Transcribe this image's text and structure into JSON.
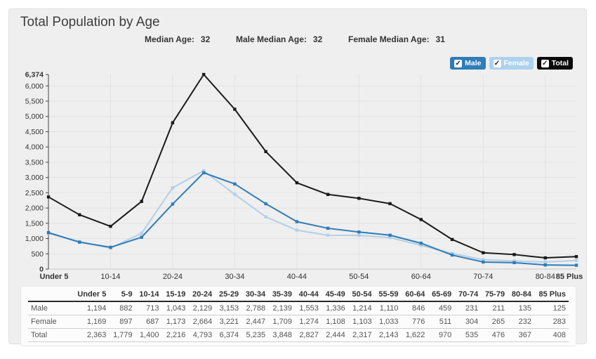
{
  "header": {
    "title": "Total Population by Age"
  },
  "stats": [
    {
      "label": "Median Age:",
      "value": "32"
    },
    {
      "label": "Male Median Age:",
      "value": "32"
    },
    {
      "label": "Female Median Age:",
      "value": "31"
    }
  ],
  "legend": [
    {
      "label": "Male",
      "color": "#2e7cb8",
      "text_color": "#ffffff",
      "checked": true
    },
    {
      "label": "Female",
      "color": "#aed1ee",
      "text_color": "#ffffff",
      "checked": true
    },
    {
      "label": "Total",
      "color": "#0a0a0a",
      "text_color": "#ffffff",
      "checked": true
    }
  ],
  "chart_data": {
    "type": "line",
    "title": "Total Population by Age",
    "categories": [
      "Under 5",
      "5-9",
      "10-14",
      "15-19",
      "20-24",
      "25-29",
      "30-34",
      "35-39",
      "40-44",
      "45-49",
      "50-54",
      "55-59",
      "60-64",
      "65-69",
      "70-74",
      "75-79",
      "80-84",
      "85 Plus"
    ],
    "series": [
      {
        "name": "Female",
        "color": "#b3cfe9",
        "values": [
          1169,
          897,
          687,
          1173,
          2664,
          3221,
          2447,
          1709,
          1274,
          1108,
          1103,
          1033,
          776,
          511,
          304,
          265,
          232,
          283
        ]
      },
      {
        "name": "Male",
        "color": "#2e7cb8",
        "values": [
          1194,
          882,
          713,
          1043,
          2129,
          3153,
          2788,
          2139,
          1553,
          1336,
          1214,
          1110,
          846,
          459,
          231,
          211,
          135,
          125
        ]
      },
      {
        "name": "Total",
        "color": "#1a1a1a",
        "values": [
          2363,
          1779,
          1400,
          2216,
          4793,
          6374,
          5235,
          3848,
          2827,
          2444,
          2317,
          2143,
          1622,
          970,
          535,
          476,
          367,
          408
        ]
      }
    ],
    "xlabel": "",
    "ylabel": "",
    "ylim": [
      0,
      6374
    ],
    "yticks": [
      0,
      500,
      1000,
      1500,
      2000,
      2500,
      3000,
      3500,
      4000,
      4500,
      5000,
      5500,
      6000,
      6374
    ],
    "bold_yticks": [
      0,
      6374
    ],
    "xtick_indices": [
      0,
      2,
      4,
      6,
      8,
      10,
      12,
      14,
      16,
      17
    ],
    "bold_xtick_indices": [
      0,
      17
    ],
    "grid": true,
    "legend_position": "top-right",
    "grid_color": "#e2e2e2",
    "axis_color": "#444444"
  },
  "table": {
    "corner_label": "",
    "columns": [
      "Under 5",
      "5-9",
      "10-14",
      "15-19",
      "20-24",
      "25-29",
      "30-34",
      "35-39",
      "40-44",
      "45-49",
      "50-54",
      "55-59",
      "60-64",
      "65-69",
      "70-74",
      "75-79",
      "80-84",
      "85 Plus"
    ],
    "rows": [
      {
        "label": "Male",
        "values": [
          1194,
          882,
          713,
          1043,
          2129,
          3153,
          2788,
          2139,
          1553,
          1336,
          1214,
          1110,
          846,
          459,
          231,
          211,
          135,
          125
        ]
      },
      {
        "label": "Female",
        "values": [
          1169,
          897,
          687,
          1173,
          2664,
          3221,
          2447,
          1709,
          1274,
          1108,
          1103,
          1033,
          776,
          511,
          304,
          265,
          232,
          283
        ]
      },
      {
        "label": "Total",
        "values": [
          2363,
          1779,
          1400,
          2216,
          4793,
          6374,
          5235,
          3848,
          2827,
          2444,
          2317,
          2143,
          1622,
          970,
          535,
          476,
          367,
          408
        ]
      }
    ]
  }
}
